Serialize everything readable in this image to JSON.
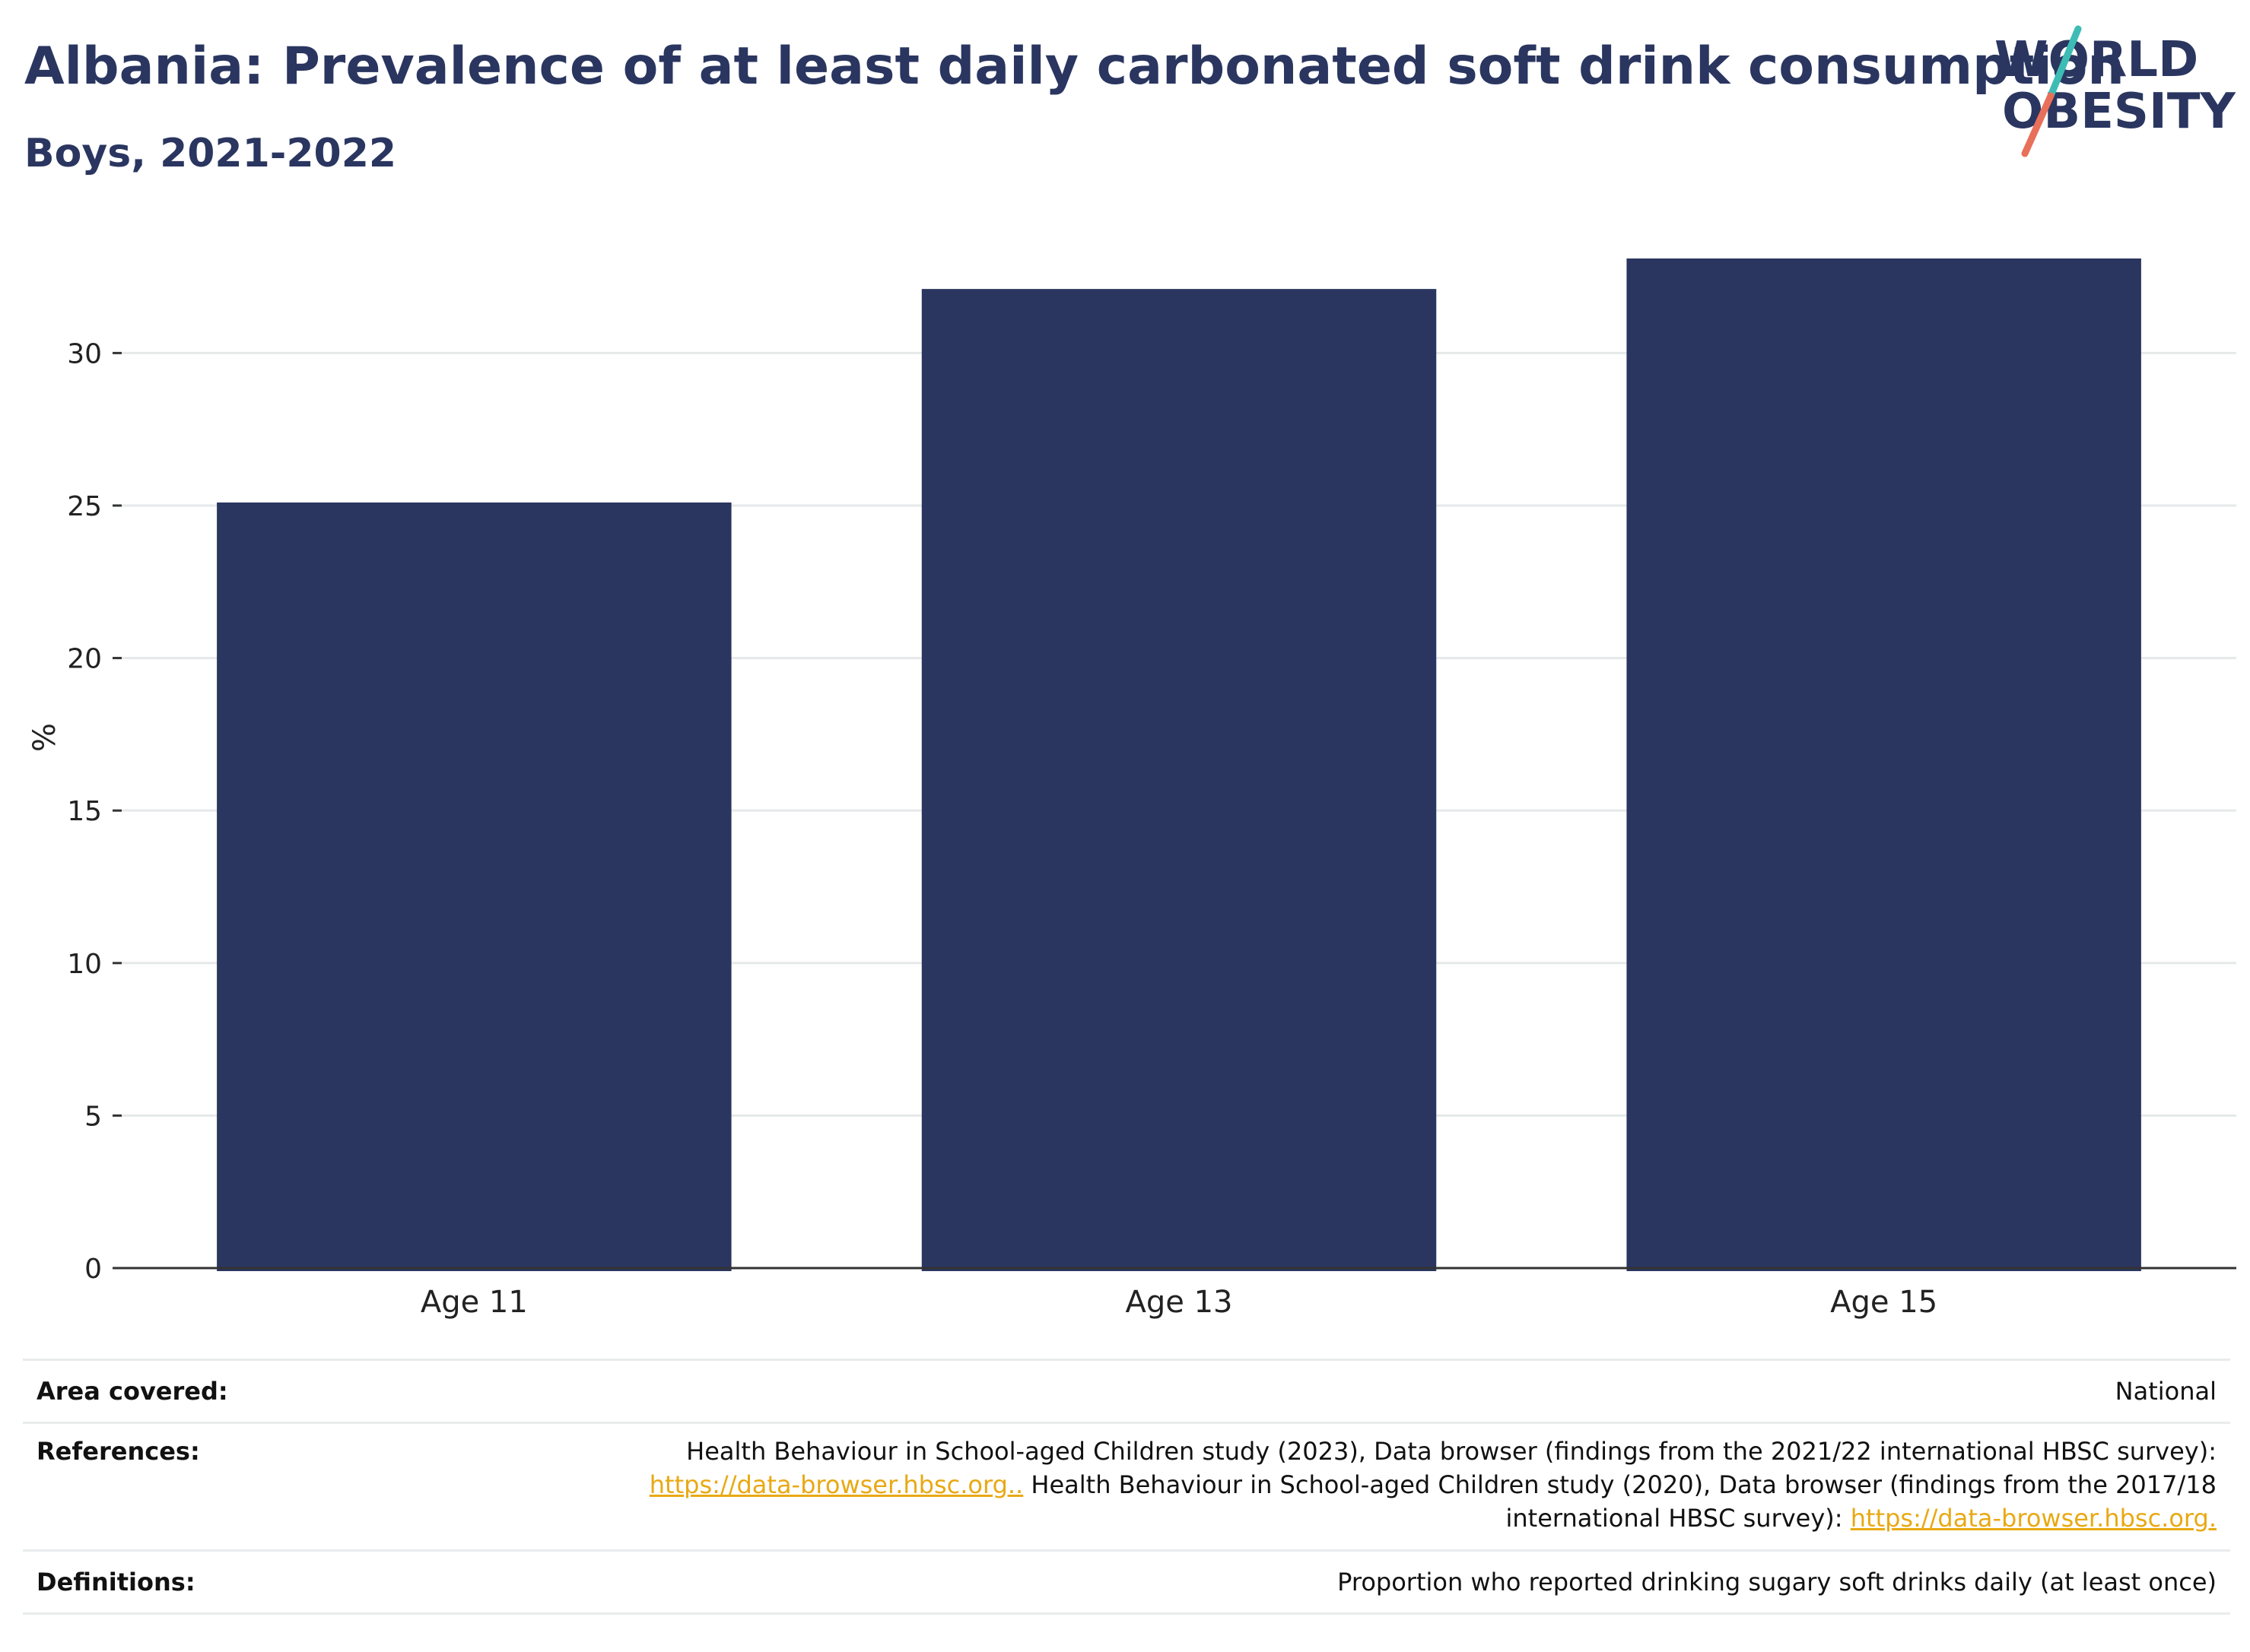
{
  "header": {
    "title": "Albania: Prevalence of at least daily carbonated soft drink consumption",
    "subtitle": "Boys, 2021-2022"
  },
  "logo": {
    "line1": "WORLD",
    "line2": "OBESITY"
  },
  "chart_data": {
    "type": "bar",
    "categories": [
      "Age 11",
      "Age 13",
      "Age 15"
    ],
    "values": [
      25.1,
      32.1,
      33.1
    ],
    "xlabel": "",
    "ylabel": "%",
    "ylim": [
      0,
      33.1
    ],
    "yticks": [
      0,
      5,
      10,
      15,
      20,
      25,
      30
    ],
    "grid": true,
    "bar_color": "#2a3660"
  },
  "meta": {
    "area_label": "Area covered:",
    "area_value": "National",
    "references_label": "References:",
    "references_text1": "Health Behaviour in School-aged Children study (2023), Data browser (findings from the 2021/22 international HBSC survey):",
    "references_link1": "https://data-browser.hbsc.org..",
    "references_text2": " Health Behaviour in School-aged Children study (2020), Data browser (findings from the 2017/18",
    "references_text3": "international HBSC survey): ",
    "references_link2": "https://data-browser.hbsc.org.",
    "definitions_label": "Definitions:",
    "definitions_value": "Proportion who reported drinking sugary soft drinks daily (at least once)"
  },
  "colors": {
    "accent_navy": "#2a3660",
    "link": "#e8a913",
    "logo_teal": "#3dbcb5",
    "logo_coral": "#e8705a"
  }
}
